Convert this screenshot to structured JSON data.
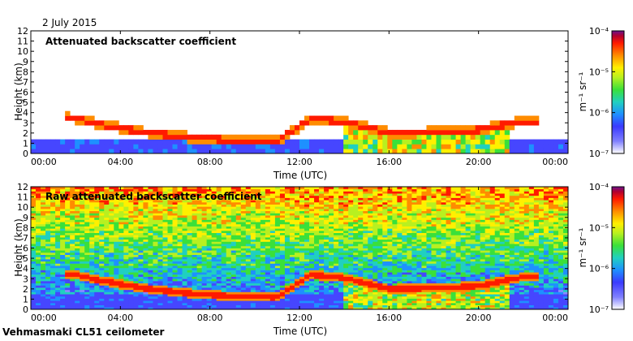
{
  "date_label": "2 July 2015",
  "footer_label": "Vehmasmaki CL51 ceilometer",
  "colors": {
    "scale": [
      "#ffffff",
      "#6a6aff",
      "#1ea0ff",
      "#22d3a0",
      "#7ce026",
      "#fff000",
      "#ff8a00",
      "#ff2a00",
      "#cc0000",
      "#7a1490"
    ]
  },
  "chart_data": [
    {
      "type": "heatmap",
      "title": "Attenuated backscatter coefficient",
      "xlabel": "Time (UTC)",
      "ylabel": "Height (km)",
      "xlim": [
        0,
        24
      ],
      "ylim": [
        0,
        12
      ],
      "x_ticks": [
        "00:00",
        "04:00",
        "08:00",
        "12:00",
        "16:00",
        "20:00",
        "00:00"
      ],
      "y_ticks": [
        "0",
        "1",
        "2",
        "3",
        "4",
        "5",
        "6",
        "7",
        "8",
        "9",
        "10",
        "11",
        "12"
      ],
      "colorbar": {
        "labels": [
          "10⁻⁷",
          "10⁻⁶",
          "10⁻⁵",
          "10⁻⁴"
        ],
        "unit": "m⁻¹ sr⁻¹",
        "log_scale": true,
        "range": [
          1e-07,
          0.0001
        ]
      },
      "layer_height_km": [
        [
          1.8,
          3.5
        ],
        [
          3,
          2.9
        ],
        [
          5,
          2.1
        ],
        [
          7,
          1.6
        ],
        [
          9,
          1.3
        ],
        [
          11,
          1.2
        ],
        [
          12.5,
          3.4
        ],
        [
          14,
          3.1
        ],
        [
          16,
          2.0
        ],
        [
          18,
          2.1
        ],
        [
          20,
          2.3
        ],
        [
          22,
          3.2
        ]
      ]
    },
    {
      "type": "heatmap",
      "title": "Raw attenuated backscatter coefficient",
      "xlabel": "Time (UTC)",
      "ylabel": "Height (km)",
      "xlim": [
        0,
        24
      ],
      "ylim": [
        0,
        12
      ],
      "x_ticks": [
        "00:00",
        "04:00",
        "08:00",
        "12:00",
        "16:00",
        "20:00",
        "00:00"
      ],
      "y_ticks": [
        "0",
        "1",
        "2",
        "3",
        "4",
        "5",
        "6",
        "7",
        "8",
        "9",
        "10",
        "11",
        "12"
      ],
      "colorbar": {
        "labels": [
          "10⁻⁷",
          "10⁻⁶",
          "10⁻⁵",
          "10⁻⁴"
        ],
        "unit": "m⁻¹ sr⁻¹",
        "log_scale": true,
        "range": [
          1e-07,
          0.0001
        ]
      },
      "layer_height_km": [
        [
          1.8,
          3.5
        ],
        [
          3,
          2.9
        ],
        [
          5,
          2.1
        ],
        [
          7,
          1.6
        ],
        [
          9,
          1.3
        ],
        [
          11,
          1.2
        ],
        [
          12.5,
          3.4
        ],
        [
          14,
          3.1
        ],
        [
          16,
          2.0
        ],
        [
          18,
          2.1
        ],
        [
          20,
          2.3
        ],
        [
          22,
          3.2
        ]
      ]
    }
  ]
}
